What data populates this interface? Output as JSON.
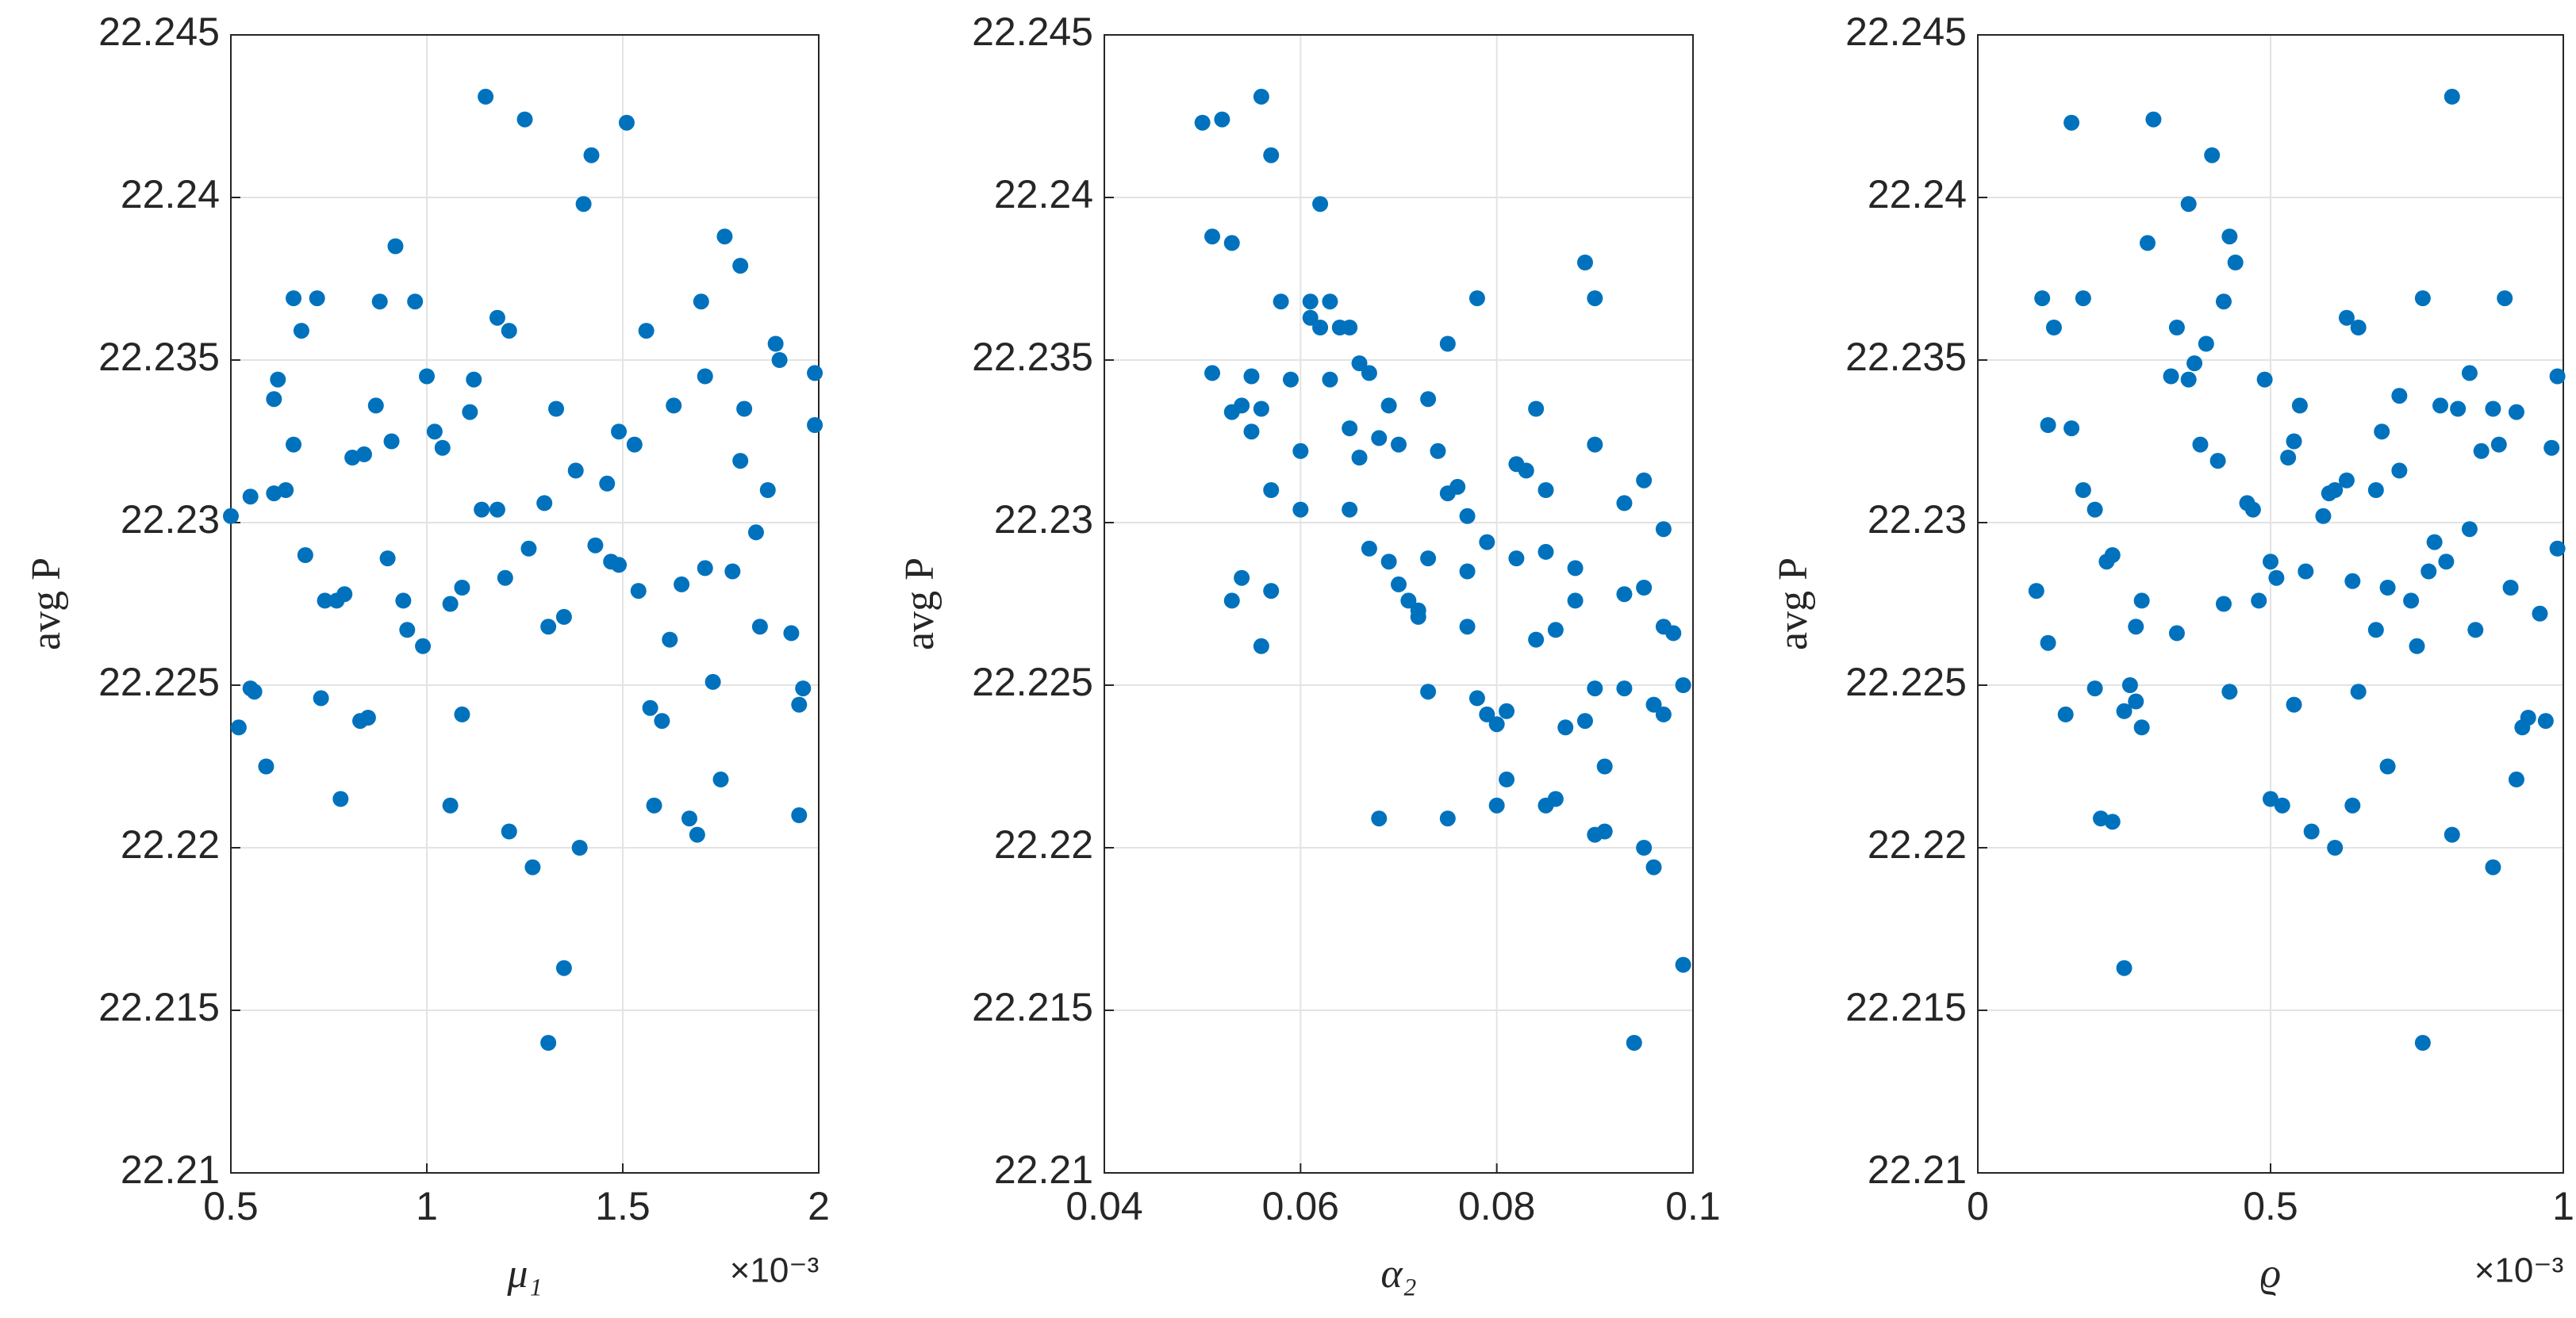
{
  "chart_data": [
    {
      "type": "scatter",
      "xlabel": "μ₁",
      "ylabel": "avg P",
      "x_multiplier": "×10⁻³",
      "color": "#0072bd",
      "grid": true,
      "xlim": [
        0.5,
        2
      ],
      "xticks": [
        0.5,
        1,
        1.5,
        2
      ],
      "ylim": [
        22.21,
        22.245
      ],
      "yticks": [
        22.21,
        22.215,
        22.22,
        22.225,
        22.23,
        22.235,
        22.24,
        22.245
      ],
      "x": [
        1.15,
        1.25,
        1.51,
        1.42,
        1.4,
        1.76,
        1.8,
        0.92,
        0.66,
        0.72,
        0.88,
        0.97,
        1.7,
        1.18,
        1.21,
        0.68,
        1.56,
        1.89,
        1.9,
        1.99,
        1.0,
        1.71,
        1.12,
        0.62,
        0.61,
        0.87,
        1.11,
        1.33,
        1.63,
        1.81,
        1.99,
        1.02,
        1.49,
        0.91,
        1.04,
        1.53,
        0.66,
        0.81,
        0.84,
        1.8,
        1.38,
        1.46,
        0.55,
        0.61,
        0.64,
        1.87,
        1.3,
        1.14,
        1.18,
        0.5,
        1.84,
        1.43,
        1.26,
        0.69,
        0.9,
        1.47,
        1.49,
        1.71,
        1.78,
        1.2,
        1.09,
        1.54,
        0.79,
        0.74,
        0.77,
        0.94,
        1.06,
        1.65,
        1.62,
        1.35,
        1.31,
        0.95,
        0.99,
        1.85,
        1.93,
        0.55,
        0.56,
        1.73,
        1.96,
        0.73,
        1.57,
        1.95,
        1.09,
        0.85,
        0.83,
        1.6,
        0.52,
        0.59,
        1.75,
        0.78,
        1.58,
        1.06,
        1.67,
        1.95,
        1.21,
        1.69,
        1.39,
        1.27,
        1.35,
        1.31
      ],
      "values": [
        22.2431,
        22.2424,
        22.2423,
        22.2413,
        22.2398,
        22.2388,
        22.2379,
        22.2385,
        22.2369,
        22.2369,
        22.2368,
        22.2368,
        22.2368,
        22.2363,
        22.2359,
        22.2359,
        22.2359,
        22.2355,
        22.235,
        22.2346,
        22.2345,
        22.2345,
        22.2344,
        22.2344,
        22.2338,
        22.2336,
        22.2334,
        22.2335,
        22.2336,
        22.2335,
        22.233,
        22.2328,
        22.2328,
        22.2325,
        22.2323,
        22.2324,
        22.2324,
        22.232,
        22.2321,
        22.2319,
        22.2316,
        22.2312,
        22.2308,
        22.2309,
        22.231,
        22.231,
        22.2306,
        22.2304,
        22.2304,
        22.2302,
        22.2297,
        22.2293,
        22.2292,
        22.229,
        22.2289,
        22.2288,
        22.2287,
        22.2286,
        22.2285,
        22.2283,
        22.228,
        22.2279,
        22.2278,
        22.2276,
        22.2276,
        22.2276,
        22.2275,
        22.2281,
        22.2264,
        22.2271,
        22.2268,
        22.2267,
        22.2262,
        22.2268,
        22.2266,
        22.2249,
        22.2248,
        22.2251,
        22.2249,
        22.2246,
        22.2243,
        22.2244,
        22.2241,
        22.224,
        22.2239,
        22.2239,
        22.2237,
        22.2225,
        22.2221,
        22.2215,
        22.2213,
        22.2213,
        22.2209,
        22.221,
        22.2205,
        22.2204,
        22.22,
        22.2194,
        22.2163,
        22.214
      ]
    },
    {
      "type": "scatter",
      "xlabel": "α₂",
      "ylabel": "avg P",
      "color": "#0072bd",
      "grid": true,
      "xlim": [
        0.04,
        0.1
      ],
      "xticks": [
        0.04,
        0.06,
        0.08,
        0.1
      ],
      "ylim": [
        22.21,
        22.245
      ],
      "yticks": [
        22.21,
        22.215,
        22.22,
        22.225,
        22.23,
        22.235,
        22.24,
        22.245
      ],
      "x": [
        0.05,
        0.052,
        0.056,
        0.057,
        0.062,
        0.051,
        0.053,
        0.089,
        0.078,
        0.09,
        0.058,
        0.061,
        0.063,
        0.061,
        0.062,
        0.064,
        0.065,
        0.075,
        0.051,
        0.055,
        0.059,
        0.063,
        0.067,
        0.066,
        0.073,
        0.069,
        0.053,
        0.054,
        0.056,
        0.084,
        0.055,
        0.065,
        0.068,
        0.07,
        0.06,
        0.066,
        0.074,
        0.09,
        0.082,
        0.083,
        0.076,
        0.075,
        0.085,
        0.057,
        0.095,
        0.093,
        0.06,
        0.065,
        0.077,
        0.097,
        0.067,
        0.079,
        0.085,
        0.073,
        0.069,
        0.082,
        0.088,
        0.054,
        0.07,
        0.077,
        0.057,
        0.071,
        0.072,
        0.072,
        0.053,
        0.093,
        0.095,
        0.088,
        0.086,
        0.077,
        0.097,
        0.098,
        0.056,
        0.084,
        0.073,
        0.078,
        0.09,
        0.093,
        0.099,
        0.079,
        0.08,
        0.081,
        0.087,
        0.089,
        0.096,
        0.097,
        0.081,
        0.091,
        0.068,
        0.075,
        0.08,
        0.085,
        0.086,
        0.09,
        0.091,
        0.095,
        0.096,
        0.099,
        0.094
      ],
      "values": [
        22.2423,
        22.2424,
        22.2431,
        22.2413,
        22.2398,
        22.2388,
        22.2386,
        22.238,
        22.2369,
        22.2369,
        22.2368,
        22.2368,
        22.2368,
        22.2363,
        22.236,
        22.236,
        22.236,
        22.2355,
        22.2346,
        22.2345,
        22.2344,
        22.2344,
        22.2346,
        22.2349,
        22.2338,
        22.2336,
        22.2334,
        22.2336,
        22.2335,
        22.2335,
        22.2328,
        22.2329,
        22.2326,
        22.2324,
        22.2322,
        22.232,
        22.2322,
        22.2324,
        22.2318,
        22.2316,
        22.2311,
        22.2309,
        22.231,
        22.231,
        22.2313,
        22.2306,
        22.2304,
        22.2304,
        22.2302,
        22.2298,
        22.2292,
        22.2294,
        22.2291,
        22.2289,
        22.2288,
        22.2289,
        22.2286,
        22.2283,
        22.2281,
        22.2285,
        22.2279,
        22.2276,
        22.2273,
        22.2271,
        22.2276,
        22.2278,
        22.228,
        22.2276,
        22.2267,
        22.2268,
        22.2268,
        22.2266,
        22.2262,
        22.2264,
        22.2248,
        22.2246,
        22.2249,
        22.2249,
        22.225,
        22.2241,
        22.2238,
        22.2242,
        22.2237,
        22.2239,
        22.2244,
        22.2241,
        22.2221,
        22.2225,
        22.2209,
        22.2209,
        22.2213,
        22.2213,
        22.2215,
        22.2204,
        22.2205,
        22.22,
        22.2194,
        22.2164,
        22.214
      ]
    },
    {
      "type": "scatter",
      "xlabel": "ϱ",
      "ylabel": "avg P",
      "x_multiplier": "×10⁻³",
      "color": "#0072bd",
      "grid": true,
      "xlim": [
        0,
        1
      ],
      "xticks": [
        0,
        0.5,
        1
      ],
      "ylim": [
        22.21,
        22.245
      ],
      "yticks": [
        22.21,
        22.215,
        22.22,
        22.225,
        22.23,
        22.235,
        22.24,
        22.245
      ],
      "x": [
        0.16,
        0.3,
        0.81,
        0.4,
        0.36,
        0.43,
        0.29,
        0.44,
        0.11,
        0.18,
        0.76,
        0.9,
        0.42,
        0.63,
        0.65,
        0.13,
        0.34,
        0.39,
        0.37,
        0.33,
        0.36,
        0.99,
        0.84,
        0.49,
        0.72,
        0.79,
        0.82,
        0.88,
        0.92,
        0.55,
        0.12,
        0.16,
        0.69,
        0.38,
        0.54,
        0.89,
        0.98,
        0.86,
        0.53,
        0.41,
        0.72,
        0.63,
        0.18,
        0.61,
        0.6,
        0.68,
        0.46,
        0.47,
        0.2,
        0.59,
        0.84,
        0.78,
        0.99,
        0.23,
        0.22,
        0.5,
        0.8,
        0.51,
        0.56,
        0.77,
        0.64,
        0.7,
        0.91,
        0.1,
        0.28,
        0.42,
        0.48,
        0.74,
        0.96,
        0.27,
        0.34,
        0.85,
        0.68,
        0.12,
        0.75,
        0.26,
        0.2,
        0.43,
        0.65,
        0.27,
        0.25,
        0.15,
        0.54,
        0.28,
        0.94,
        0.97,
        0.93,
        0.7,
        0.92,
        0.5,
        0.52,
        0.64,
        0.21,
        0.23,
        0.57,
        0.81,
        0.61,
        0.88,
        0.25,
        0.76
      ],
      "values": [
        22.2423,
        22.2424,
        22.2431,
        22.2413,
        22.2398,
        22.2388,
        22.2386,
        22.238,
        22.2369,
        22.2369,
        22.2369,
        22.2369,
        22.2368,
        22.2363,
        22.236,
        22.236,
        22.236,
        22.2355,
        22.2349,
        22.2345,
        22.2344,
        22.2345,
        22.2346,
        22.2344,
        22.2339,
        22.2336,
        22.2335,
        22.2335,
        22.2334,
        22.2336,
        22.233,
        22.2329,
        22.2328,
        22.2324,
        22.2325,
        22.2324,
        22.2323,
        22.2322,
        22.232,
        22.2319,
        22.2316,
        22.2313,
        22.231,
        22.231,
        22.2309,
        22.231,
        22.2306,
        22.2304,
        22.2304,
        22.2302,
        22.2298,
        22.2294,
        22.2292,
        22.229,
        22.2288,
        22.2288,
        22.2288,
        22.2283,
        22.2285,
        22.2285,
        22.2282,
        22.228,
        22.228,
        22.2279,
        22.2276,
        22.2275,
        22.2276,
        22.2276,
        22.2272,
        22.2268,
        22.2266,
        22.2267,
        22.2267,
        22.2263,
        22.2262,
        22.225,
        22.2249,
        22.2248,
        22.2248,
        22.2245,
        22.2242,
        22.2241,
        22.2244,
        22.2237,
        22.224,
        22.2239,
        22.2237,
        22.2225,
        22.2221,
        22.2215,
        22.2213,
        22.2213,
        22.2209,
        22.2208,
        22.2205,
        22.2204,
        22.22,
        22.2194,
        22.2163,
        22.214
      ]
    }
  ]
}
